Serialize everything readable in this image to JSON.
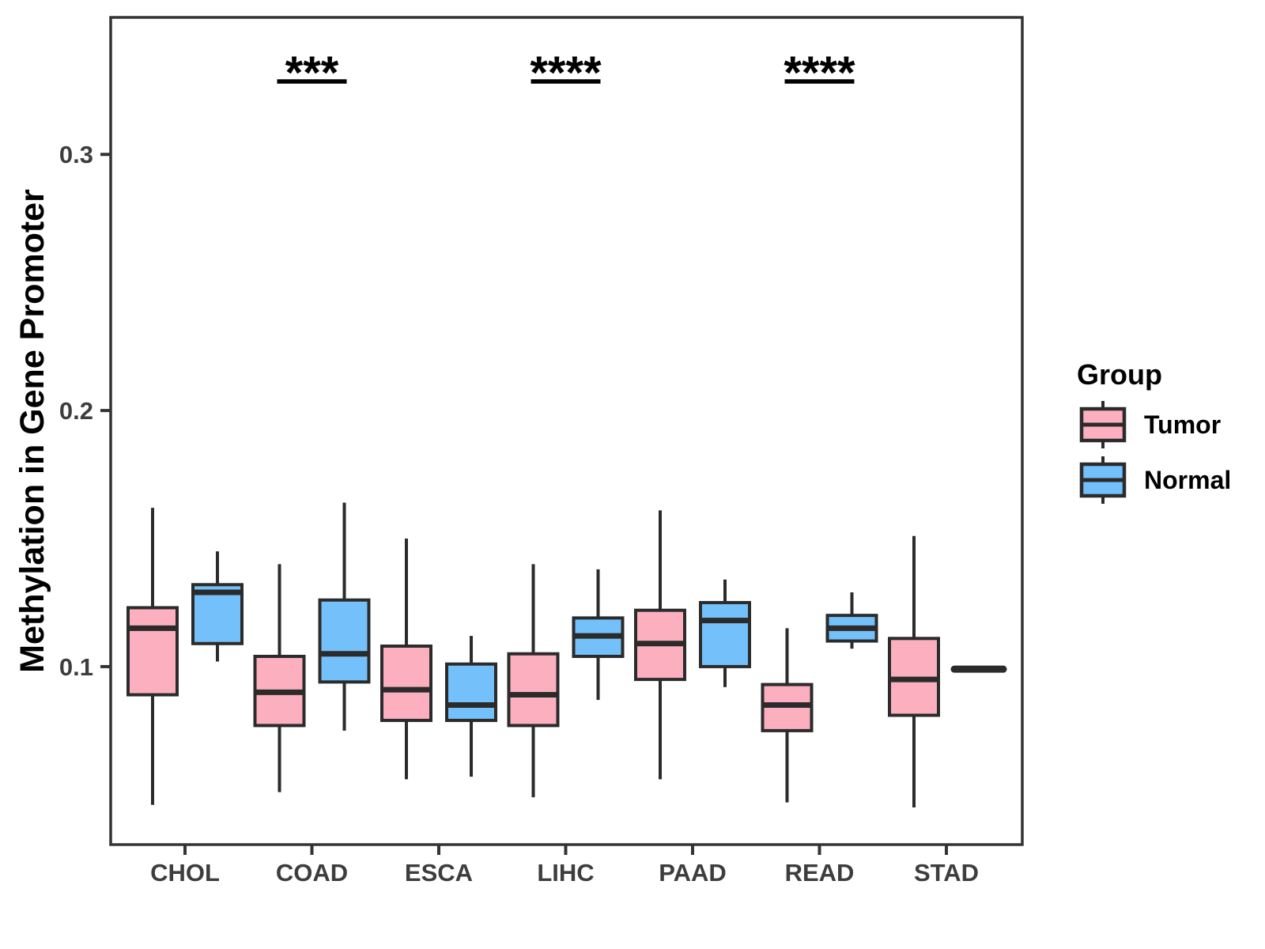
{
  "page": {
    "background": "#ffffff"
  },
  "chart_data": {
    "type": "boxplot",
    "title": "",
    "xlabel": "",
    "ylabel": "Methylation in Gene Promoter",
    "grid": "off",
    "legend_position": "right",
    "categories": [
      "CHOL",
      "COAD",
      "ESCA",
      "LIHC",
      "PAAD",
      "READ",
      "STAD"
    ],
    "groups": [
      "Tumor",
      "Normal"
    ],
    "ylim": [
      0.0305,
      0.3535
    ],
    "yticks": [
      {
        "value": 0.1,
        "label": "0.1"
      },
      {
        "value": 0.2,
        "label": "0.2"
      },
      {
        "value": 0.3,
        "label": "0.3"
      }
    ],
    "legend": {
      "title": "Group",
      "entries": [
        {
          "label": "Tumor",
          "color": "#FCAFBF"
        },
        {
          "label": "Normal",
          "color": "#74C0FA"
        }
      ]
    },
    "significance": [
      {
        "category": "COAD",
        "label": "***"
      },
      {
        "category": "LIHC",
        "label": "****"
      },
      {
        "category": "READ",
        "label": "****"
      }
    ],
    "series": [
      {
        "name": "Tumor",
        "color": "#FCAFBF",
        "boxes": [
          {
            "category": "CHOL",
            "low": 0.046,
            "q1": 0.089,
            "median": 0.115,
            "q3": 0.123,
            "high": 0.162
          },
          {
            "category": "COAD",
            "low": 0.051,
            "q1": 0.077,
            "median": 0.09,
            "q3": 0.104,
            "high": 0.14
          },
          {
            "category": "ESCA",
            "low": 0.056,
            "q1": 0.079,
            "median": 0.091,
            "q3": 0.108,
            "high": 0.15
          },
          {
            "category": "LIHC",
            "low": 0.049,
            "q1": 0.077,
            "median": 0.089,
            "q3": 0.105,
            "high": 0.14
          },
          {
            "category": "PAAD",
            "low": 0.056,
            "q1": 0.095,
            "median": 0.109,
            "q3": 0.122,
            "high": 0.161
          },
          {
            "category": "READ",
            "low": 0.047,
            "q1": 0.075,
            "median": 0.085,
            "q3": 0.093,
            "high": 0.115
          },
          {
            "category": "STAD",
            "low": 0.045,
            "q1": 0.081,
            "median": 0.095,
            "q3": 0.111,
            "high": 0.151
          }
        ]
      },
      {
        "name": "Normal",
        "color": "#74C0FA",
        "boxes": [
          {
            "category": "CHOL",
            "low": 0.102,
            "q1": 0.109,
            "median": 0.129,
            "q3": 0.132,
            "high": 0.145
          },
          {
            "category": "COAD",
            "low": 0.075,
            "q1": 0.094,
            "median": 0.105,
            "q3": 0.126,
            "high": 0.164
          },
          {
            "category": "ESCA",
            "low": 0.057,
            "q1": 0.079,
            "median": 0.085,
            "q3": 0.101,
            "high": 0.112
          },
          {
            "category": "LIHC",
            "low": 0.087,
            "q1": 0.104,
            "median": 0.112,
            "q3": 0.119,
            "high": 0.138
          },
          {
            "category": "PAAD",
            "low": 0.092,
            "q1": 0.1,
            "median": 0.118,
            "q3": 0.125,
            "high": 0.134
          },
          {
            "category": "READ",
            "low": 0.107,
            "q1": 0.11,
            "median": 0.115,
            "q3": 0.12,
            "high": 0.129
          },
          {
            "category": "STAD",
            "collapsed": true,
            "median": 0.099
          }
        ]
      }
    ]
  },
  "style": {
    "box_stroke": "#2B2B2B",
    "axis_line_color": "#333333",
    "tick_label_color": "#3D3D3D",
    "axis_title_color": "#000000",
    "significance_color": "#000000",
    "legend_text_color": "#000000"
  }
}
